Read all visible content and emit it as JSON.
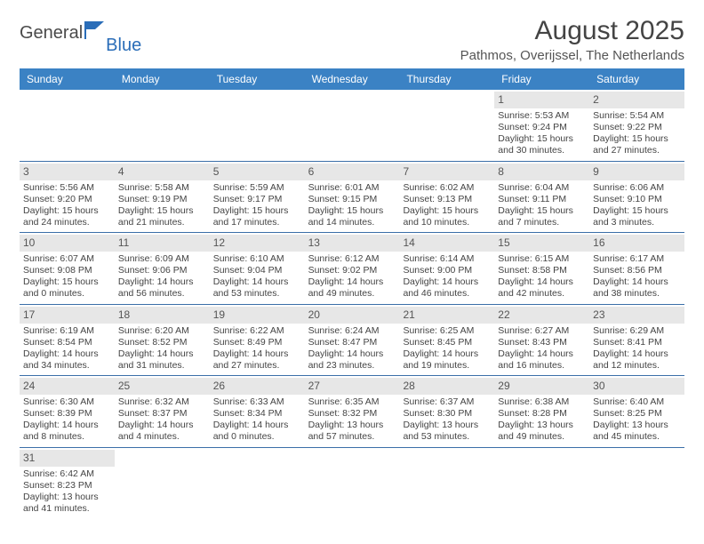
{
  "logo": {
    "general": "General",
    "blue": "Blue"
  },
  "title": "August 2025",
  "location": "Pathmos, Overijssel, The Netherlands",
  "colors": {
    "header_bg": "#3b82c4",
    "header_text": "#ffffff",
    "daynum_bg": "#e7e7e7",
    "row_divider": "#3b6fa8",
    "body_text": "#444444",
    "logo_gray": "#4a4a4a",
    "logo_blue": "#2a6db8"
  },
  "days_of_week": [
    "Sunday",
    "Monday",
    "Tuesday",
    "Wednesday",
    "Thursday",
    "Friday",
    "Saturday"
  ],
  "weeks": [
    [
      null,
      null,
      null,
      null,
      null,
      {
        "n": "1",
        "sunrise": "5:53 AM",
        "sunset": "9:24 PM",
        "daylight": "15 hours and 30 minutes."
      },
      {
        "n": "2",
        "sunrise": "5:54 AM",
        "sunset": "9:22 PM",
        "daylight": "15 hours and 27 minutes."
      }
    ],
    [
      {
        "n": "3",
        "sunrise": "5:56 AM",
        "sunset": "9:20 PM",
        "daylight": "15 hours and 24 minutes."
      },
      {
        "n": "4",
        "sunrise": "5:58 AM",
        "sunset": "9:19 PM",
        "daylight": "15 hours and 21 minutes."
      },
      {
        "n": "5",
        "sunrise": "5:59 AM",
        "sunset": "9:17 PM",
        "daylight": "15 hours and 17 minutes."
      },
      {
        "n": "6",
        "sunrise": "6:01 AM",
        "sunset": "9:15 PM",
        "daylight": "15 hours and 14 minutes."
      },
      {
        "n": "7",
        "sunrise": "6:02 AM",
        "sunset": "9:13 PM",
        "daylight": "15 hours and 10 minutes."
      },
      {
        "n": "8",
        "sunrise": "6:04 AM",
        "sunset": "9:11 PM",
        "daylight": "15 hours and 7 minutes."
      },
      {
        "n": "9",
        "sunrise": "6:06 AM",
        "sunset": "9:10 PM",
        "daylight": "15 hours and 3 minutes."
      }
    ],
    [
      {
        "n": "10",
        "sunrise": "6:07 AM",
        "sunset": "9:08 PM",
        "daylight": "15 hours and 0 minutes."
      },
      {
        "n": "11",
        "sunrise": "6:09 AM",
        "sunset": "9:06 PM",
        "daylight": "14 hours and 56 minutes."
      },
      {
        "n": "12",
        "sunrise": "6:10 AM",
        "sunset": "9:04 PM",
        "daylight": "14 hours and 53 minutes."
      },
      {
        "n": "13",
        "sunrise": "6:12 AM",
        "sunset": "9:02 PM",
        "daylight": "14 hours and 49 minutes."
      },
      {
        "n": "14",
        "sunrise": "6:14 AM",
        "sunset": "9:00 PM",
        "daylight": "14 hours and 46 minutes."
      },
      {
        "n": "15",
        "sunrise": "6:15 AM",
        "sunset": "8:58 PM",
        "daylight": "14 hours and 42 minutes."
      },
      {
        "n": "16",
        "sunrise": "6:17 AM",
        "sunset": "8:56 PM",
        "daylight": "14 hours and 38 minutes."
      }
    ],
    [
      {
        "n": "17",
        "sunrise": "6:19 AM",
        "sunset": "8:54 PM",
        "daylight": "14 hours and 34 minutes."
      },
      {
        "n": "18",
        "sunrise": "6:20 AM",
        "sunset": "8:52 PM",
        "daylight": "14 hours and 31 minutes."
      },
      {
        "n": "19",
        "sunrise": "6:22 AM",
        "sunset": "8:49 PM",
        "daylight": "14 hours and 27 minutes."
      },
      {
        "n": "20",
        "sunrise": "6:24 AM",
        "sunset": "8:47 PM",
        "daylight": "14 hours and 23 minutes."
      },
      {
        "n": "21",
        "sunrise": "6:25 AM",
        "sunset": "8:45 PM",
        "daylight": "14 hours and 19 minutes."
      },
      {
        "n": "22",
        "sunrise": "6:27 AM",
        "sunset": "8:43 PM",
        "daylight": "14 hours and 16 minutes."
      },
      {
        "n": "23",
        "sunrise": "6:29 AM",
        "sunset": "8:41 PM",
        "daylight": "14 hours and 12 minutes."
      }
    ],
    [
      {
        "n": "24",
        "sunrise": "6:30 AM",
        "sunset": "8:39 PM",
        "daylight": "14 hours and 8 minutes."
      },
      {
        "n": "25",
        "sunrise": "6:32 AM",
        "sunset": "8:37 PM",
        "daylight": "14 hours and 4 minutes."
      },
      {
        "n": "26",
        "sunrise": "6:33 AM",
        "sunset": "8:34 PM",
        "daylight": "14 hours and 0 minutes."
      },
      {
        "n": "27",
        "sunrise": "6:35 AM",
        "sunset": "8:32 PM",
        "daylight": "13 hours and 57 minutes."
      },
      {
        "n": "28",
        "sunrise": "6:37 AM",
        "sunset": "8:30 PM",
        "daylight": "13 hours and 53 minutes."
      },
      {
        "n": "29",
        "sunrise": "6:38 AM",
        "sunset": "8:28 PM",
        "daylight": "13 hours and 49 minutes."
      },
      {
        "n": "30",
        "sunrise": "6:40 AM",
        "sunset": "8:25 PM",
        "daylight": "13 hours and 45 minutes."
      }
    ],
    [
      {
        "n": "31",
        "sunrise": "6:42 AM",
        "sunset": "8:23 PM",
        "daylight": "13 hours and 41 minutes."
      },
      null,
      null,
      null,
      null,
      null,
      null
    ]
  ],
  "labels": {
    "sunrise": "Sunrise: ",
    "sunset": "Sunset: ",
    "daylight": "Daylight: "
  }
}
